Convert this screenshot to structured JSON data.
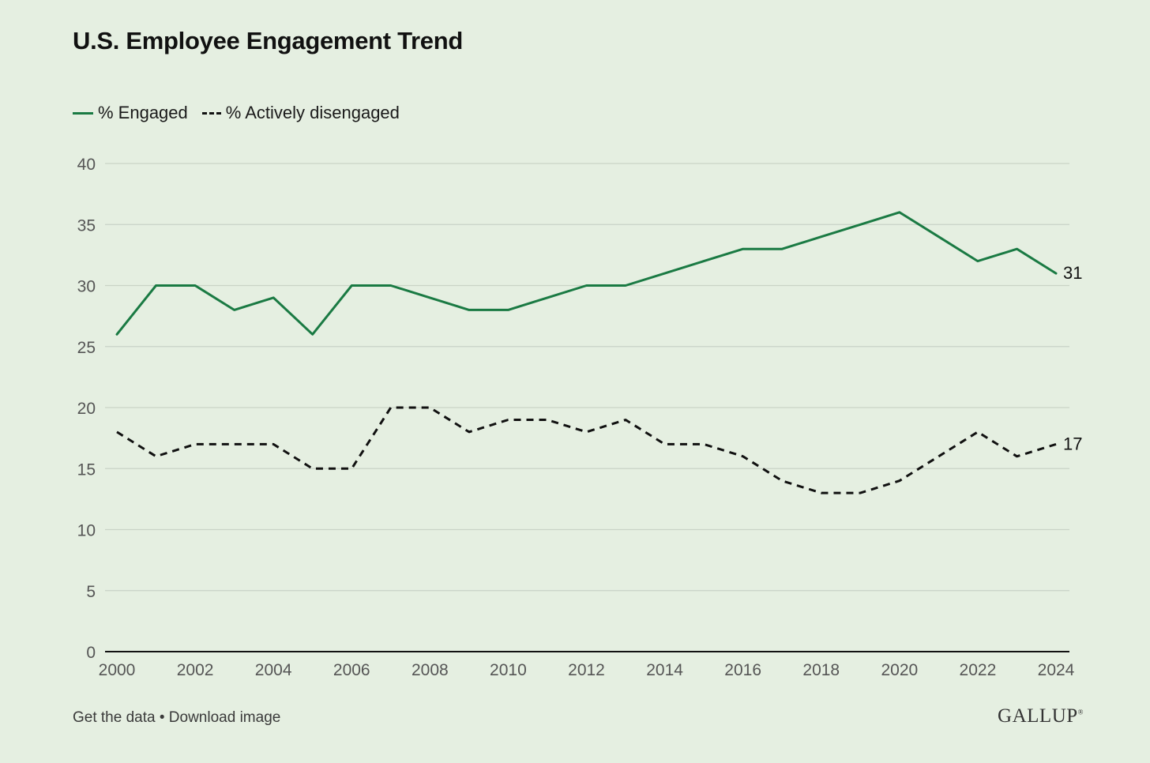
{
  "title": "U.S. Employee Engagement Trend",
  "legend": {
    "engaged": "% Engaged",
    "disengaged": "% Actively disengaged"
  },
  "colors": {
    "background": "#e5efe1",
    "engaged": "#1a7a43",
    "disengaged": "#111111",
    "grid": "#c9d3c6"
  },
  "footer": {
    "get_data": "Get the data",
    "separator": "•",
    "download": "Download image"
  },
  "logo": "GALLUP",
  "chart_data": {
    "type": "line",
    "title": "U.S. Employee Engagement Trend",
    "xlabel": "",
    "ylabel": "",
    "x": [
      2000,
      2001,
      2002,
      2003,
      2004,
      2005,
      2006,
      2007,
      2008,
      2009,
      2010,
      2011,
      2012,
      2013,
      2014,
      2015,
      2016,
      2017,
      2018,
      2019,
      2020,
      2021,
      2022,
      2023,
      2024
    ],
    "xticks": [
      2000,
      2002,
      2004,
      2006,
      2008,
      2010,
      2012,
      2014,
      2016,
      2018,
      2020,
      2022,
      2024
    ],
    "yticks": [
      0,
      5,
      10,
      15,
      20,
      25,
      30,
      35,
      40
    ],
    "ylim": [
      0,
      40
    ],
    "xlim": [
      2000,
      2024
    ],
    "grid": "horizontal",
    "legend_position": "top-left",
    "series": [
      {
        "name": "% Engaged",
        "style": "solid",
        "values": [
          26,
          30,
          30,
          28,
          29,
          26,
          30,
          30,
          29,
          28,
          28,
          29,
          30,
          30,
          31,
          32,
          33,
          33,
          34,
          35,
          36,
          34,
          32,
          33,
          31
        ],
        "end_label": "31"
      },
      {
        "name": "% Actively disengaged",
        "style": "dashed",
        "values": [
          18,
          16,
          17,
          17,
          17,
          15,
          15,
          20,
          20,
          18,
          19,
          19,
          18,
          19,
          17,
          17,
          16,
          14,
          13,
          13,
          14,
          16,
          18,
          16,
          17
        ],
        "end_label": "17"
      }
    ]
  }
}
